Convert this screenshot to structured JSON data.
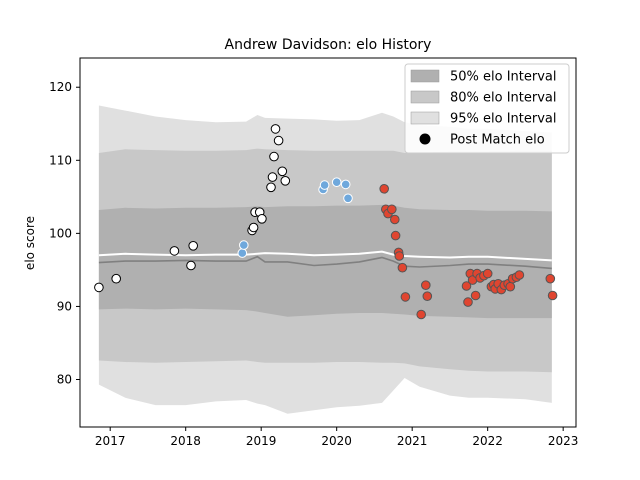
{
  "chart_data": {
    "type": "scatter",
    "title": "Andrew Davidson: elo History",
    "xlabel": "",
    "ylabel": "elo score",
    "xlim": [
      2016.6,
      2023.17
    ],
    "ylim": [
      73.5,
      124
    ],
    "x_ticks": [
      2017,
      2018,
      2019,
      2020,
      2021,
      2022,
      2023
    ],
    "y_ticks": [
      80,
      90,
      100,
      110,
      120
    ],
    "legend_position": "top-right",
    "legend": [
      {
        "label": "50% elo Interval",
        "kind": "patch",
        "color": "#b0b0b0"
      },
      {
        "label": "80% elo Interval",
        "kind": "patch",
        "color": "#c8c8c8"
      },
      {
        "label": "95% elo Interval",
        "kind": "patch",
        "color": "#e0e0e0"
      },
      {
        "label": "Post Match elo",
        "kind": "marker",
        "color": "#000000"
      }
    ],
    "bands": {
      "x": [
        2016.85,
        2017.2,
        2017.6,
        2018.0,
        2018.4,
        2018.8,
        2018.95,
        2019.05,
        2019.35,
        2019.7,
        2020.0,
        2020.3,
        2020.6,
        2020.75,
        2020.9,
        2021.1,
        2021.5,
        2021.75,
        2022.0,
        2022.5,
        2022.85
      ],
      "b95": {
        "upper": [
          117.5,
          116.8,
          116.0,
          115.5,
          115.2,
          115.3,
          116.2,
          115.8,
          115.7,
          115.6,
          115.4,
          115.5,
          116.5,
          116.0,
          115.2,
          114.8,
          114.6,
          114.3,
          114.3,
          114.0,
          113.8
        ],
        "lower": [
          79.3,
          77.5,
          76.5,
          76.5,
          77.0,
          77.2,
          76.7,
          76.5,
          75.3,
          75.8,
          76.2,
          76.4,
          76.8,
          78.5,
          80.2,
          79.0,
          77.8,
          77.5,
          77.5,
          77.3,
          76.8
        ]
      },
      "b80": {
        "upper": [
          111.0,
          111.5,
          111.4,
          111.3,
          111.3,
          111.4,
          111.6,
          111.5,
          111.4,
          111.3,
          111.3,
          111.3,
          111.3,
          111.3,
          111.0,
          111.0,
          111.2,
          111.2,
          111.2,
          111.3,
          111.3
        ],
        "lower": [
          82.6,
          82.4,
          82.3,
          82.4,
          82.5,
          82.6,
          82.4,
          82.3,
          82.3,
          82.3,
          82.4,
          82.4,
          82.3,
          82.3,
          82.2,
          81.8,
          81.4,
          81.2,
          81.1,
          81.1,
          81.0
        ]
      },
      "b50": {
        "upper": [
          103.2,
          103.5,
          103.4,
          103.5,
          103.5,
          103.6,
          103.7,
          103.6,
          103.7,
          103.7,
          103.8,
          103.8,
          103.9,
          103.8,
          103.5,
          103.3,
          103.2,
          103.2,
          103.1,
          103.1,
          103.0
        ],
        "lower": [
          89.6,
          89.7,
          89.6,
          89.7,
          89.6,
          89.5,
          89.3,
          89.1,
          88.6,
          88.8,
          89.0,
          89.1,
          89.1,
          89.0,
          88.9,
          88.7,
          88.6,
          88.5,
          88.4,
          88.4,
          88.4
        ]
      }
    },
    "mean_line": {
      "x": [
        2016.85,
        2017.2,
        2017.6,
        2018.0,
        2018.4,
        2018.8,
        2018.95,
        2019.05,
        2019.35,
        2019.7,
        2020.0,
        2020.3,
        2020.6,
        2020.75,
        2020.9,
        2021.1,
        2021.5,
        2021.75,
        2022.0,
        2022.5,
        2022.85
      ],
      "y": [
        96.0,
        96.2,
        96.2,
        96.3,
        96.2,
        96.2,
        96.8,
        96.1,
        96.1,
        95.6,
        95.8,
        96.1,
        96.7,
        96.2,
        95.5,
        95.4,
        95.6,
        95.8,
        95.8,
        95.5,
        95.2
      ]
    },
    "center_line": {
      "x": [
        2016.85,
        2017.2,
        2017.6,
        2018.0,
        2018.4,
        2018.8,
        2018.95,
        2019.05,
        2019.35,
        2019.7,
        2020.0,
        2020.3,
        2020.6,
        2020.75,
        2020.9,
        2021.1,
        2021.5,
        2021.75,
        2022.0,
        2022.5,
        2022.85
      ],
      "y": [
        97.0,
        97.2,
        97.1,
        97.0,
        97.1,
        97.1,
        97.2,
        97.3,
        97.2,
        97.0,
        97.1,
        97.2,
        97.5,
        97.1,
        96.9,
        96.8,
        96.7,
        96.8,
        96.8,
        96.5,
        96.3
      ]
    },
    "series": [
      {
        "color": "#ffffff",
        "points": [
          [
            2016.85,
            92.6
          ],
          [
            2017.08,
            93.8
          ],
          [
            2017.85,
            97.6
          ],
          [
            2018.07,
            95.6
          ],
          [
            2018.1,
            98.3
          ],
          [
            2018.88,
            100.4
          ],
          [
            2018.9,
            100.8
          ],
          [
            2018.92,
            102.9
          ],
          [
            2018.98,
            102.9
          ],
          [
            2019.01,
            102.0
          ],
          [
            2019.13,
            106.3
          ],
          [
            2019.15,
            107.7
          ],
          [
            2019.17,
            110.5
          ],
          [
            2019.19,
            114.3
          ],
          [
            2019.23,
            112.7
          ],
          [
            2019.28,
            108.5
          ],
          [
            2019.32,
            107.2
          ]
        ]
      },
      {
        "color": "#6fa8dc",
        "points": [
          [
            2018.75,
            97.3
          ],
          [
            2018.77,
            98.4
          ],
          [
            2019.82,
            106.0
          ],
          [
            2019.84,
            106.6
          ],
          [
            2020.0,
            107.0
          ],
          [
            2020.12,
            106.7
          ],
          [
            2020.15,
            104.8
          ]
        ]
      },
      {
        "color": "#e04530",
        "points": [
          [
            2020.63,
            106.1
          ],
          [
            2020.65,
            103.3
          ],
          [
            2020.68,
            102.7
          ],
          [
            2020.73,
            103.3
          ],
          [
            2020.77,
            101.9
          ],
          [
            2020.78,
            99.7
          ],
          [
            2020.82,
            97.4
          ],
          [
            2020.83,
            96.9
          ],
          [
            2020.87,
            95.3
          ],
          [
            2020.91,
            91.3
          ],
          [
            2021.12,
            88.9
          ],
          [
            2021.18,
            92.9
          ],
          [
            2021.2,
            91.4
          ],
          [
            2021.72,
            92.8
          ],
          [
            2021.74,
            90.6
          ],
          [
            2021.77,
            94.5
          ],
          [
            2021.8,
            93.6
          ],
          [
            2021.84,
            91.5
          ],
          [
            2021.86,
            94.5
          ],
          [
            2021.9,
            93.9
          ],
          [
            2021.95,
            94.2
          ],
          [
            2022.0,
            94.5
          ],
          [
            2022.05,
            92.7
          ],
          [
            2022.08,
            93.0
          ],
          [
            2022.1,
            92.4
          ],
          [
            2022.14,
            93.1
          ],
          [
            2022.18,
            92.3
          ],
          [
            2022.22,
            92.9
          ],
          [
            2022.27,
            93.1
          ],
          [
            2022.3,
            92.7
          ],
          [
            2022.33,
            93.8
          ],
          [
            2022.38,
            94.0
          ],
          [
            2022.42,
            94.3
          ],
          [
            2022.83,
            93.8
          ],
          [
            2022.86,
            91.5
          ]
        ]
      }
    ]
  }
}
